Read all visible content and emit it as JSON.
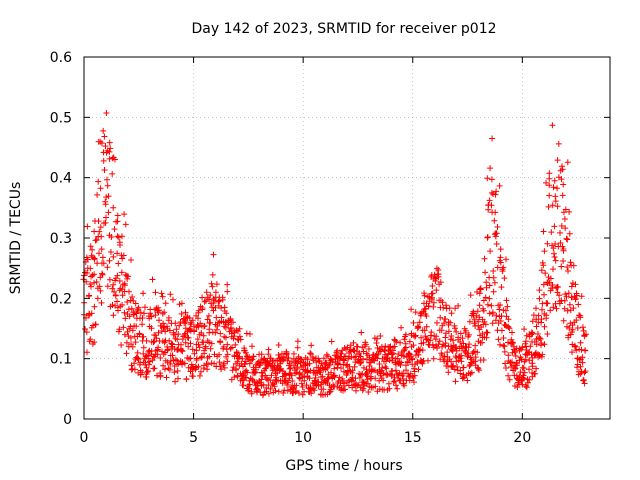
{
  "chart_data": {
    "type": "scatter",
    "title": "Day 142 of 2023, SRMTID for receiver p012",
    "xlabel": "GPS time / hours",
    "ylabel": "SRMTID / TECUs",
    "xlim": [
      0,
      24
    ],
    "ylim": [
      0,
      0.6
    ],
    "xticks": [
      0,
      5,
      10,
      15,
      20
    ],
    "yticks": [
      0,
      0.1,
      0.2,
      0.3,
      0.4,
      0.5,
      0.6
    ],
    "xtick_labels": [
      "0",
      "5",
      "10",
      "15",
      "20"
    ],
    "ytick_labels": [
      "0",
      "0.1",
      "0.2",
      "0.3",
      "0.4",
      "0.5",
      "0.6"
    ],
    "grid": true,
    "marker": "+",
    "color": "#ff0000",
    "envelope": [
      {
        "x": 0.0,
        "y": 0.17
      },
      {
        "x": 0.3,
        "y": 0.2
      },
      {
        "x": 0.6,
        "y": 0.26
      },
      {
        "x": 0.8,
        "y": 0.33
      },
      {
        "x": 1.1,
        "y": 0.36
      },
      {
        "x": 1.4,
        "y": 0.28
      },
      {
        "x": 1.8,
        "y": 0.2
      },
      {
        "x": 2.2,
        "y": 0.14
      },
      {
        "x": 2.7,
        "y": 0.12
      },
      {
        "x": 3.2,
        "y": 0.13
      },
      {
        "x": 3.7,
        "y": 0.12
      },
      {
        "x": 4.2,
        "y": 0.11
      },
      {
        "x": 4.8,
        "y": 0.12
      },
      {
        "x": 5.3,
        "y": 0.13
      },
      {
        "x": 5.8,
        "y": 0.16
      },
      {
        "x": 6.2,
        "y": 0.15
      },
      {
        "x": 6.8,
        "y": 0.11
      },
      {
        "x": 7.3,
        "y": 0.09
      },
      {
        "x": 7.8,
        "y": 0.07
      },
      {
        "x": 8.5,
        "y": 0.07
      },
      {
        "x": 9.2,
        "y": 0.08
      },
      {
        "x": 10.0,
        "y": 0.07
      },
      {
        "x": 10.8,
        "y": 0.07
      },
      {
        "x": 11.5,
        "y": 0.08
      },
      {
        "x": 12.2,
        "y": 0.085
      },
      {
        "x": 13.0,
        "y": 0.08
      },
      {
        "x": 13.7,
        "y": 0.085
      },
      {
        "x": 14.3,
        "y": 0.09
      },
      {
        "x": 14.8,
        "y": 0.1
      },
      {
        "x": 15.3,
        "y": 0.12
      },
      {
        "x": 15.8,
        "y": 0.16
      },
      {
        "x": 16.1,
        "y": 0.2
      },
      {
        "x": 16.4,
        "y": 0.15
      },
      {
        "x": 16.9,
        "y": 0.11
      },
      {
        "x": 17.3,
        "y": 0.1
      },
      {
        "x": 17.8,
        "y": 0.13
      },
      {
        "x": 18.2,
        "y": 0.16
      },
      {
        "x": 18.55,
        "y": 0.3
      },
      {
        "x": 18.8,
        "y": 0.26
      },
      {
        "x": 19.1,
        "y": 0.18
      },
      {
        "x": 19.5,
        "y": 0.09
      },
      {
        "x": 19.9,
        "y": 0.08
      },
      {
        "x": 20.3,
        "y": 0.1
      },
      {
        "x": 20.7,
        "y": 0.14
      },
      {
        "x": 21.0,
        "y": 0.19
      },
      {
        "x": 21.3,
        "y": 0.3
      },
      {
        "x": 21.6,
        "y": 0.33
      },
      {
        "x": 21.9,
        "y": 0.27
      },
      {
        "x": 22.2,
        "y": 0.21
      },
      {
        "x": 22.5,
        "y": 0.14
      },
      {
        "x": 22.8,
        "y": 0.1
      }
    ],
    "x_data_end": 22.9,
    "sample_step_hours": 0.012
  }
}
